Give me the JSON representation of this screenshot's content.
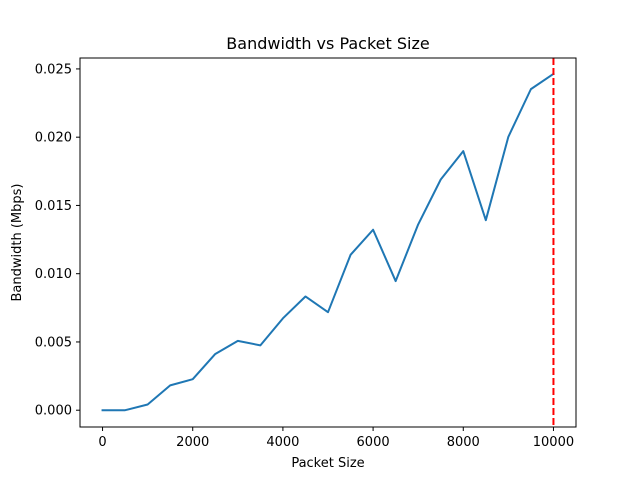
{
  "chart_data": {
    "type": "line",
    "title": "Bandwidth vs Packet Size",
    "xlabel": "Packet Size",
    "ylabel": "Bandwidth (Mbps)",
    "xlim": [
      -500,
      10500
    ],
    "ylim": [
      -0.00123,
      0.0258
    ],
    "x_ticks": [
      0,
      2000,
      4000,
      6000,
      8000,
      10000
    ],
    "x_tick_labels": [
      "0",
      "2000",
      "4000",
      "6000",
      "8000",
      "10000"
    ],
    "y_ticks": [
      0.0,
      0.005,
      0.01,
      0.015,
      0.02,
      0.025
    ],
    "y_tick_labels": [
      "0.000",
      "0.005",
      "0.010",
      "0.015",
      "0.020",
      "0.025"
    ],
    "grid": false,
    "series": [
      {
        "color": "#1f77b4",
        "x": [
          0,
          500,
          1000,
          1500,
          2000,
          2500,
          3000,
          3500,
          4000,
          4500,
          5000,
          5500,
          6000,
          6500,
          7000,
          7500,
          8000,
          8500,
          9000,
          9500,
          10000
        ],
        "y": [
          0.0,
          0.0,
          0.00042,
          0.00182,
          0.00227,
          0.00412,
          0.00508,
          0.00475,
          0.00673,
          0.00833,
          0.00718,
          0.01138,
          0.01322,
          0.00946,
          0.01361,
          0.0169,
          0.01898,
          0.01392,
          0.02003,
          0.02352,
          0.02464
        ]
      }
    ],
    "vlines": [
      {
        "x": 10000,
        "color": "#ff0000",
        "style": "dashed"
      }
    ]
  }
}
